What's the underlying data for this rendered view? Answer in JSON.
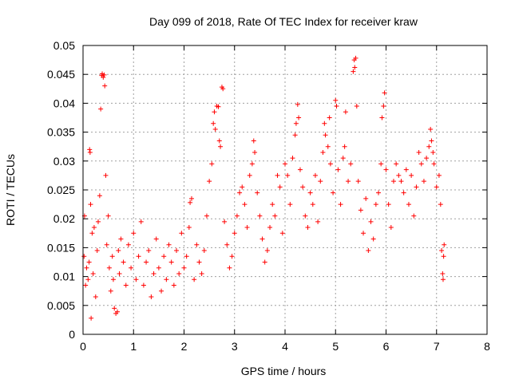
{
  "chart_data": {
    "type": "scatter",
    "title": "Day 099 of 2018, Rate Of TEC Index for receiver kraw",
    "xlabel": "GPS time / hours",
    "ylabel": "ROTI / TECUs",
    "xlim": [
      0,
      8
    ],
    "ylim": [
      0,
      0.05
    ],
    "x_ticks": [
      0,
      1,
      2,
      3,
      4,
      5,
      6,
      7,
      8
    ],
    "x_tick_labels": [
      "0",
      "1",
      "2",
      "3",
      "4",
      "5",
      "6",
      "7",
      "8"
    ],
    "y_ticks": [
      0,
      0.005,
      0.01,
      0.015,
      0.02,
      0.025,
      0.03,
      0.035,
      0.04,
      0.045,
      0.05
    ],
    "y_tick_labels": [
      "0",
      "0.005",
      "0.01",
      "0.015",
      "0.02",
      "0.025",
      "0.03",
      "0.035",
      "0.04",
      "0.045",
      "0.05"
    ],
    "grid": true,
    "marker": "+",
    "color": "#ff0000",
    "series": [
      {
        "name": "ROTI",
        "points": [
          [
            0.02,
            0.0135
          ],
          [
            0.03,
            0.0205
          ],
          [
            0.05,
            0.0085
          ],
          [
            0.07,
            0.0115
          ],
          [
            0.1,
            0.0095
          ],
          [
            0.12,
            0.0125
          ],
          [
            0.13,
            0.032
          ],
          [
            0.14,
            0.0315
          ],
          [
            0.15,
            0.0225
          ],
          [
            0.16,
            0.0028
          ],
          [
            0.18,
            0.0175
          ],
          [
            0.2,
            0.0105
          ],
          [
            0.22,
            0.0185
          ],
          [
            0.25,
            0.0065
          ],
          [
            0.28,
            0.0145
          ],
          [
            0.3,
            0.0195
          ],
          [
            0.33,
            0.024
          ],
          [
            0.35,
            0.039
          ],
          [
            0.37,
            0.0448
          ],
          [
            0.38,
            0.0451
          ],
          [
            0.4,
            0.0445
          ],
          [
            0.42,
            0.0449
          ],
          [
            0.43,
            0.043
          ],
          [
            0.45,
            0.0275
          ],
          [
            0.47,
            0.0155
          ],
          [
            0.5,
            0.0205
          ],
          [
            0.52,
            0.0115
          ],
          [
            0.55,
            0.0075
          ],
          [
            0.58,
            0.0135
          ],
          [
            0.6,
            0.0095
          ],
          [
            0.62,
            0.0045
          ],
          [
            0.65,
            0.0036
          ],
          [
            0.68,
            0.0039
          ],
          [
            0.7,
            0.0145
          ],
          [
            0.72,
            0.0105
          ],
          [
            0.75,
            0.0165
          ],
          [
            0.8,
            0.0125
          ],
          [
            0.85,
            0.0085
          ],
          [
            0.9,
            0.0155
          ],
          [
            0.95,
            0.0115
          ],
          [
            1.0,
            0.0175
          ],
          [
            1.05,
            0.0095
          ],
          [
            1.1,
            0.0135
          ],
          [
            1.15,
            0.0195
          ],
          [
            1.2,
            0.0085
          ],
          [
            1.25,
            0.0125
          ],
          [
            1.3,
            0.0145
          ],
          [
            1.35,
            0.0065
          ],
          [
            1.4,
            0.0105
          ],
          [
            1.45,
            0.0165
          ],
          [
            1.5,
            0.0115
          ],
          [
            1.55,
            0.0075
          ],
          [
            1.6,
            0.0135
          ],
          [
            1.65,
            0.0095
          ],
          [
            1.7,
            0.0155
          ],
          [
            1.75,
            0.0125
          ],
          [
            1.8,
            0.0085
          ],
          [
            1.85,
            0.0145
          ],
          [
            1.9,
            0.0105
          ],
          [
            1.95,
            0.0175
          ],
          [
            2.0,
            0.0115
          ],
          [
            2.05,
            0.0135
          ],
          [
            2.1,
            0.0185
          ],
          [
            2.12,
            0.0228
          ],
          [
            2.15,
            0.0235
          ],
          [
            2.2,
            0.0095
          ],
          [
            2.25,
            0.0155
          ],
          [
            2.3,
            0.0125
          ],
          [
            2.35,
            0.0105
          ],
          [
            2.4,
            0.0145
          ],
          [
            2.45,
            0.0205
          ],
          [
            2.5,
            0.0265
          ],
          [
            2.55,
            0.0295
          ],
          [
            2.58,
            0.0365
          ],
          [
            2.6,
            0.0385
          ],
          [
            2.62,
            0.0355
          ],
          [
            2.65,
            0.0395
          ],
          [
            2.68,
            0.0394
          ],
          [
            2.7,
            0.0335
          ],
          [
            2.72,
            0.0325
          ],
          [
            2.75,
            0.0428
          ],
          [
            2.77,
            0.0425
          ],
          [
            2.8,
            0.0195
          ],
          [
            2.85,
            0.0155
          ],
          [
            2.9,
            0.0115
          ],
          [
            2.95,
            0.0135
          ],
          [
            3.0,
            0.0175
          ],
          [
            3.05,
            0.0205
          ],
          [
            3.1,
            0.0245
          ],
          [
            3.15,
            0.0255
          ],
          [
            3.2,
            0.0225
          ],
          [
            3.25,
            0.0185
          ],
          [
            3.3,
            0.0275
          ],
          [
            3.35,
            0.0295
          ],
          [
            3.38,
            0.0335
          ],
          [
            3.4,
            0.0315
          ],
          [
            3.45,
            0.0245
          ],
          [
            3.5,
            0.0205
          ],
          [
            3.55,
            0.0165
          ],
          [
            3.6,
            0.0125
          ],
          [
            3.65,
            0.0145
          ],
          [
            3.7,
            0.0185
          ],
          [
            3.75,
            0.0225
          ],
          [
            3.8,
            0.0205
          ],
          [
            3.85,
            0.0275
          ],
          [
            3.9,
            0.0255
          ],
          [
            3.95,
            0.0175
          ],
          [
            4.0,
            0.0295
          ],
          [
            4.05,
            0.0275
          ],
          [
            4.1,
            0.0225
          ],
          [
            4.15,
            0.0305
          ],
          [
            4.2,
            0.0345
          ],
          [
            4.22,
            0.0365
          ],
          [
            4.25,
            0.0398
          ],
          [
            4.27,
            0.0375
          ],
          [
            4.3,
            0.0285
          ],
          [
            4.35,
            0.0255
          ],
          [
            4.4,
            0.0205
          ],
          [
            4.45,
            0.0185
          ],
          [
            4.5,
            0.0245
          ],
          [
            4.55,
            0.0225
          ],
          [
            4.6,
            0.0275
          ],
          [
            4.65,
            0.0195
          ],
          [
            4.7,
            0.0265
          ],
          [
            4.75,
            0.0315
          ],
          [
            4.78,
            0.0365
          ],
          [
            4.8,
            0.0345
          ],
          [
            4.85,
            0.0325
          ],
          [
            4.88,
            0.0375
          ],
          [
            4.9,
            0.0295
          ],
          [
            4.95,
            0.0245
          ],
          [
            5.0,
            0.0405
          ],
          [
            5.02,
            0.0395
          ],
          [
            5.05,
            0.0285
          ],
          [
            5.1,
            0.0225
          ],
          [
            5.15,
            0.0305
          ],
          [
            5.18,
            0.0325
          ],
          [
            5.2,
            0.0385
          ],
          [
            5.25,
            0.0265
          ],
          [
            5.3,
            0.0295
          ],
          [
            5.35,
            0.0455
          ],
          [
            5.37,
            0.0475
          ],
          [
            5.38,
            0.0462
          ],
          [
            5.4,
            0.0478
          ],
          [
            5.42,
            0.0395
          ],
          [
            5.45,
            0.0265
          ],
          [
            5.5,
            0.0215
          ],
          [
            5.55,
            0.0175
          ],
          [
            5.6,
            0.0235
          ],
          [
            5.65,
            0.0145
          ],
          [
            5.7,
            0.0195
          ],
          [
            5.75,
            0.0165
          ],
          [
            5.8,
            0.0225
          ],
          [
            5.85,
            0.0245
          ],
          [
            5.9,
            0.0295
          ],
          [
            5.92,
            0.0375
          ],
          [
            5.95,
            0.0395
          ],
          [
            5.97,
            0.0418
          ],
          [
            6.0,
            0.0285
          ],
          [
            6.05,
            0.0225
          ],
          [
            6.1,
            0.0185
          ],
          [
            6.15,
            0.0265
          ],
          [
            6.2,
            0.0295
          ],
          [
            6.25,
            0.0275
          ],
          [
            6.3,
            0.0265
          ],
          [
            6.35,
            0.0245
          ],
          [
            6.4,
            0.0285
          ],
          [
            6.45,
            0.0225
          ],
          [
            6.5,
            0.0275
          ],
          [
            6.55,
            0.0205
          ],
          [
            6.6,
            0.0255
          ],
          [
            6.65,
            0.0315
          ],
          [
            6.7,
            0.0295
          ],
          [
            6.75,
            0.0265
          ],
          [
            6.8,
            0.0305
          ],
          [
            6.85,
            0.0325
          ],
          [
            6.88,
            0.0355
          ],
          [
            6.9,
            0.0335
          ],
          [
            6.93,
            0.0315
          ],
          [
            6.95,
            0.0295
          ],
          [
            7.0,
            0.0255
          ],
          [
            7.05,
            0.0275
          ],
          [
            7.08,
            0.0225
          ],
          [
            7.1,
            0.0145
          ],
          [
            7.12,
            0.0105
          ],
          [
            7.13,
            0.0095
          ],
          [
            7.14,
            0.0135
          ],
          [
            7.15,
            0.0155
          ]
        ]
      }
    ]
  }
}
